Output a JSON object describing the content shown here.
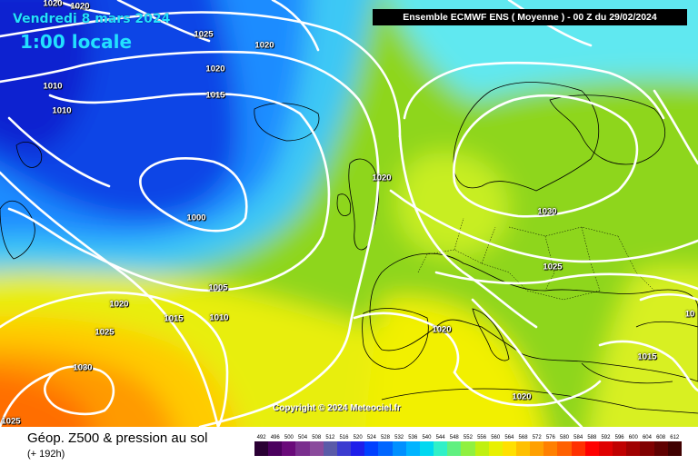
{
  "header": {
    "date_label": "Vendredi 8 mars 2024",
    "time_label": "1:00 locale",
    "run_label": "Ensemble ECMWF ENS  ( Moyenne )  -  00 Z du 29/02/2024"
  },
  "map": {
    "copyright": "Copyright © 2024 Meteociel.fr",
    "isobars": [
      {
        "id": "isobar-1020-topleft",
        "text": "1020"
      },
      {
        "id": "isobar-1020-top",
        "text": "1020"
      },
      {
        "id": "isobar-1025-north",
        "text": "1025"
      },
      {
        "id": "isobar-1020-north",
        "text": "1020"
      },
      {
        "id": "isobar-1020-north2",
        "text": "1020"
      },
      {
        "id": "isobar-1015-north",
        "text": "1015"
      },
      {
        "id": "isobar-1010-west",
        "text": "1010"
      },
      {
        "id": "isobar-1010-west2",
        "text": "1010"
      },
      {
        "id": "isobar-1000-low",
        "text": "1000"
      },
      {
        "id": "isobar-1020-uk",
        "text": "1020"
      },
      {
        "id": "isobar-1030-scandinavia",
        "text": "1030"
      },
      {
        "id": "isobar-1025-central",
        "text": "1025"
      },
      {
        "id": "isobar-1005-atlantic",
        "text": "1005"
      },
      {
        "id": "isobar-1020-southwest",
        "text": "1020"
      },
      {
        "id": "isobar-1015-southwest",
        "text": "1015"
      },
      {
        "id": "isobar-1010-southwest",
        "text": "1010"
      },
      {
        "id": "isobar-1025-southwest",
        "text": "1025"
      },
      {
        "id": "isobar-1030-azores",
        "text": "1030"
      },
      {
        "id": "isobar-1020-iberia",
        "text": "1020"
      },
      {
        "id": "isobar-1020-africa",
        "text": "1020"
      },
      {
        "id": "isobar-1015-turkey",
        "text": "1015"
      },
      {
        "id": "isobar-1025-corner",
        "text": "1025"
      },
      {
        "id": "isobar-10-east",
        "text": "10"
      }
    ],
    "low_center": "1000",
    "high_center": "1030"
  },
  "footer": {
    "field_label": "Géop. Z500 & pression au sol",
    "lead_label": "(+ 192h)"
  },
  "scale": {
    "labels": [
      "492",
      "496",
      "500",
      "504",
      "508",
      "512",
      "516",
      "520",
      "524",
      "528",
      "532",
      "536",
      "540",
      "544",
      "548",
      "552",
      "556",
      "560",
      "564",
      "568",
      "572",
      "576",
      "580",
      "584",
      "588",
      "592",
      "596",
      "600",
      "604",
      "608",
      "612"
    ],
    "colors": [
      "#2a0034",
      "#4b005e",
      "#6a0a7a",
      "#7a2e8e",
      "#8a4a9c",
      "#5a5aa8",
      "#3b3bd0",
      "#1e1eea",
      "#0040ff",
      "#0066ff",
      "#0090ff",
      "#00b4ff",
      "#00d8f0",
      "#30f0c8",
      "#60f080",
      "#90f040",
      "#c0f010",
      "#e8f000",
      "#ffe000",
      "#ffc000",
      "#ffa000",
      "#ff8000",
      "#ff6000",
      "#ff3000",
      "#ff0000",
      "#e00000",
      "#c00000",
      "#a00000",
      "#800000",
      "#600000",
      "#400000"
    ]
  }
}
